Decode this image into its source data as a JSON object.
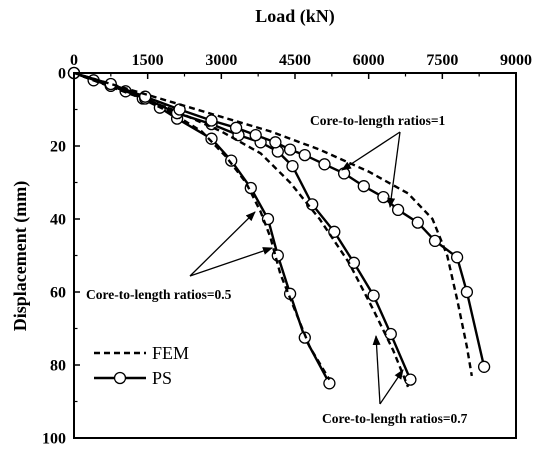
{
  "chart_data": {
    "type": "line",
    "xlabel": "Load (kN)",
    "ylabel": "Displacement (mm)",
    "xlim": [
      0,
      9000
    ],
    "ylim": [
      0,
      100
    ],
    "y_inverted": true,
    "x_axis_position": "top",
    "xticks": [
      0,
      1500,
      3000,
      4500,
      6000,
      7500,
      9000
    ],
    "yticks": [
      0,
      20,
      40,
      60,
      80,
      100
    ],
    "grid": false,
    "legend_position": "bottom-left",
    "legend": [
      {
        "label": "FEM",
        "style": "dashed"
      },
      {
        "label": "PS",
        "style": "solid-circle-markers"
      }
    ],
    "series": [
      {
        "group": "0.5",
        "kind": "PS",
        "points": [
          [
            0,
            0
          ],
          [
            400,
            2
          ],
          [
            750,
            3.5
          ],
          [
            1050,
            5
          ],
          [
            1400,
            7
          ],
          [
            1750,
            9.5
          ],
          [
            2100,
            12.5
          ],
          [
            2800,
            18
          ],
          [
            3200,
            24
          ],
          [
            3600,
            31.5
          ],
          [
            3950,
            40
          ],
          [
            4150,
            50
          ],
          [
            4400,
            60.5
          ],
          [
            4700,
            72.5
          ],
          [
            5200,
            85
          ]
        ]
      },
      {
        "group": "0.5",
        "kind": "FEM",
        "points": [
          [
            0,
            0
          ],
          [
            600,
            3
          ],
          [
            1300,
            6.5
          ],
          [
            2000,
            11
          ],
          [
            2600,
            16
          ],
          [
            3100,
            23
          ],
          [
            3500,
            30
          ],
          [
            3800,
            38
          ],
          [
            4000,
            45
          ],
          [
            4200,
            55
          ],
          [
            4500,
            65
          ],
          [
            4800,
            75
          ],
          [
            5200,
            84
          ]
        ]
      },
      {
        "group": "0.7",
        "kind": "PS",
        "points": [
          [
            0,
            0
          ],
          [
            750,
            3.5
          ],
          [
            1450,
            7
          ],
          [
            2100,
            11
          ],
          [
            2800,
            14
          ],
          [
            3350,
            17
          ],
          [
            3800,
            19
          ],
          [
            4150,
            21.5
          ],
          [
            4450,
            25.5
          ],
          [
            4850,
            36
          ],
          [
            5300,
            43.5
          ],
          [
            5700,
            52
          ],
          [
            6100,
            61
          ],
          [
            6450,
            71.5
          ],
          [
            6850,
            84
          ]
        ]
      },
      {
        "group": "0.7",
        "kind": "FEM",
        "points": [
          [
            0,
            0
          ],
          [
            1000,
            5
          ],
          [
            2000,
            10
          ],
          [
            3000,
            16
          ],
          [
            3800,
            22
          ],
          [
            4400,
            30
          ],
          [
            5000,
            40
          ],
          [
            5600,
            52
          ],
          [
            6100,
            65
          ],
          [
            6500,
            76
          ],
          [
            6800,
            86
          ]
        ]
      },
      {
        "group": "1",
        "kind": "PS",
        "points": [
          [
            0,
            0
          ],
          [
            750,
            3
          ],
          [
            1450,
            6.5
          ],
          [
            2150,
            10
          ],
          [
            2800,
            13
          ],
          [
            3300,
            15
          ],
          [
            3700,
            17
          ],
          [
            4100,
            19
          ],
          [
            4400,
            21
          ],
          [
            4700,
            22.5
          ],
          [
            5100,
            25
          ],
          [
            5500,
            27.5
          ],
          [
            5900,
            31
          ],
          [
            6300,
            34
          ],
          [
            6600,
            37.5
          ],
          [
            7000,
            41
          ],
          [
            7350,
            46
          ],
          [
            7800,
            50.5
          ],
          [
            8000,
            60
          ],
          [
            8350,
            80.5
          ]
        ]
      },
      {
        "group": "1",
        "kind": "FEM",
        "points": [
          [
            0,
            0
          ],
          [
            1000,
            4
          ],
          [
            2000,
            8
          ],
          [
            3000,
            12
          ],
          [
            4000,
            16
          ],
          [
            5000,
            21
          ],
          [
            6000,
            27
          ],
          [
            6800,
            33
          ],
          [
            7300,
            40
          ],
          [
            7600,
            50
          ],
          [
            7800,
            62
          ],
          [
            8000,
            75
          ],
          [
            8100,
            83
          ]
        ]
      }
    ],
    "annotations": [
      {
        "text": "Core-to-length ratios=1"
      },
      {
        "text": "Core-to-length ratios=0.5"
      },
      {
        "text": "Core-to-length ratios=0.7"
      }
    ]
  }
}
